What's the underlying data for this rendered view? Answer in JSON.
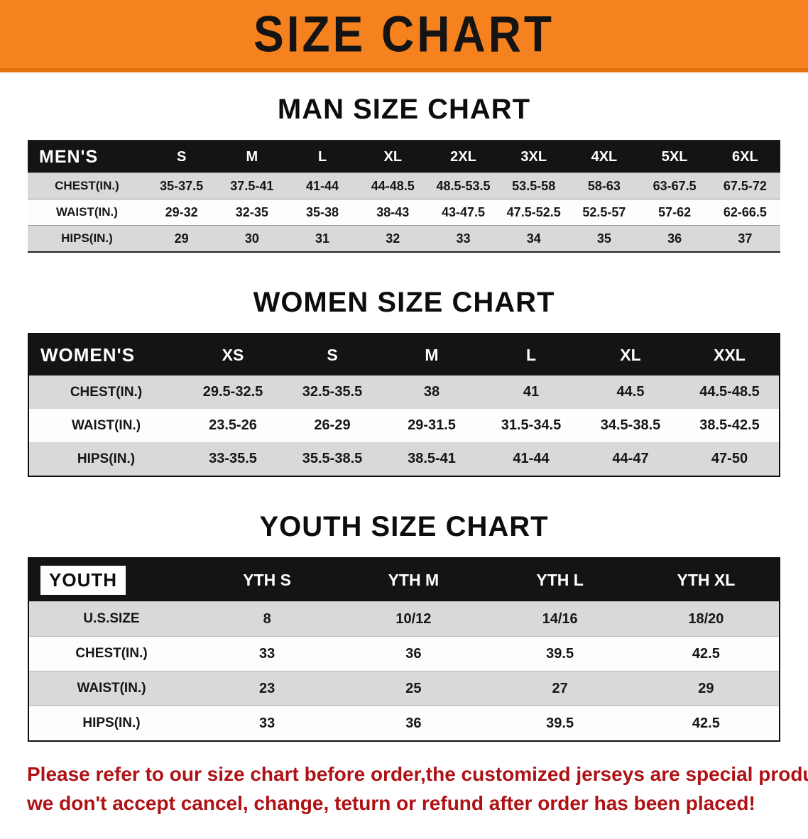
{
  "banner": {
    "title": "SIZE CHART",
    "bg_color": "#f5821f",
    "text_color": "#141414"
  },
  "chart_data": [
    {
      "type": "table",
      "title": "MAN SIZE CHART",
      "header_label": "MEN'S",
      "label_on_white": false,
      "columns": [
        "S",
        "M",
        "L",
        "XL",
        "2XL",
        "3XL",
        "4XL",
        "5XL",
        "6XL"
      ],
      "rows": [
        {
          "label": "CHEST(IN.)",
          "values": [
            "35-37.5",
            "37.5-41",
            "41-44",
            "44-48.5",
            "48.5-53.5",
            "53.5-58",
            "58-63",
            "63-67.5",
            "67.5-72"
          ]
        },
        {
          "label": "WAIST(IN.)",
          "values": [
            "29-32",
            "32-35",
            "35-38",
            "38-43",
            "43-47.5",
            "47.5-52.5",
            "52.5-57",
            "57-62",
            "62-66.5"
          ]
        },
        {
          "label": "HIPS(IN.)",
          "values": [
            "29",
            "30",
            "31",
            "32",
            "33",
            "34",
            "35",
            "36",
            "37"
          ]
        }
      ]
    },
    {
      "type": "table",
      "title": "WOMEN SIZE CHART",
      "header_label": "WOMEN'S",
      "label_on_white": false,
      "columns": [
        "XS",
        "S",
        "M",
        "L",
        "XL",
        "XXL"
      ],
      "rows": [
        {
          "label": "CHEST(IN.)",
          "values": [
            "29.5-32.5",
            "32.5-35.5",
            "38",
            "41",
            "44.5",
            "44.5-48.5"
          ]
        },
        {
          "label": "WAIST(IN.)",
          "values": [
            "23.5-26",
            "26-29",
            "29-31.5",
            "31.5-34.5",
            "34.5-38.5",
            "38.5-42.5"
          ]
        },
        {
          "label": "HIPS(IN.)",
          "values": [
            "33-35.5",
            "35.5-38.5",
            "38.5-41",
            "41-44",
            "44-47",
            "47-50"
          ]
        }
      ]
    },
    {
      "type": "table",
      "title": "YOUTH SIZE CHART",
      "header_label": "YOUTH",
      "label_on_white": true,
      "columns": [
        "YTH S",
        "YTH M",
        "YTH L",
        "YTH XL"
      ],
      "rows": [
        {
          "label": "U.S.SIZE",
          "values": [
            "8",
            "10/12",
            "14/16",
            "18/20"
          ]
        },
        {
          "label": "CHEST(IN.)",
          "values": [
            "33",
            "36",
            "39.5",
            "42.5"
          ]
        },
        {
          "label": "WAIST(IN.)",
          "values": [
            "23",
            "25",
            "27",
            "29"
          ]
        },
        {
          "label": "HIPS(IN.)",
          "values": [
            "33",
            "36",
            "39.5",
            "42.5"
          ]
        }
      ]
    }
  ],
  "footer": {
    "color": "#ae1215",
    "lines": [
      "Please refer to our size chart before order,the customized jerseys are special products,",
      "we don't accept cancel, change, teturn or refund after order has been placed!"
    ]
  }
}
